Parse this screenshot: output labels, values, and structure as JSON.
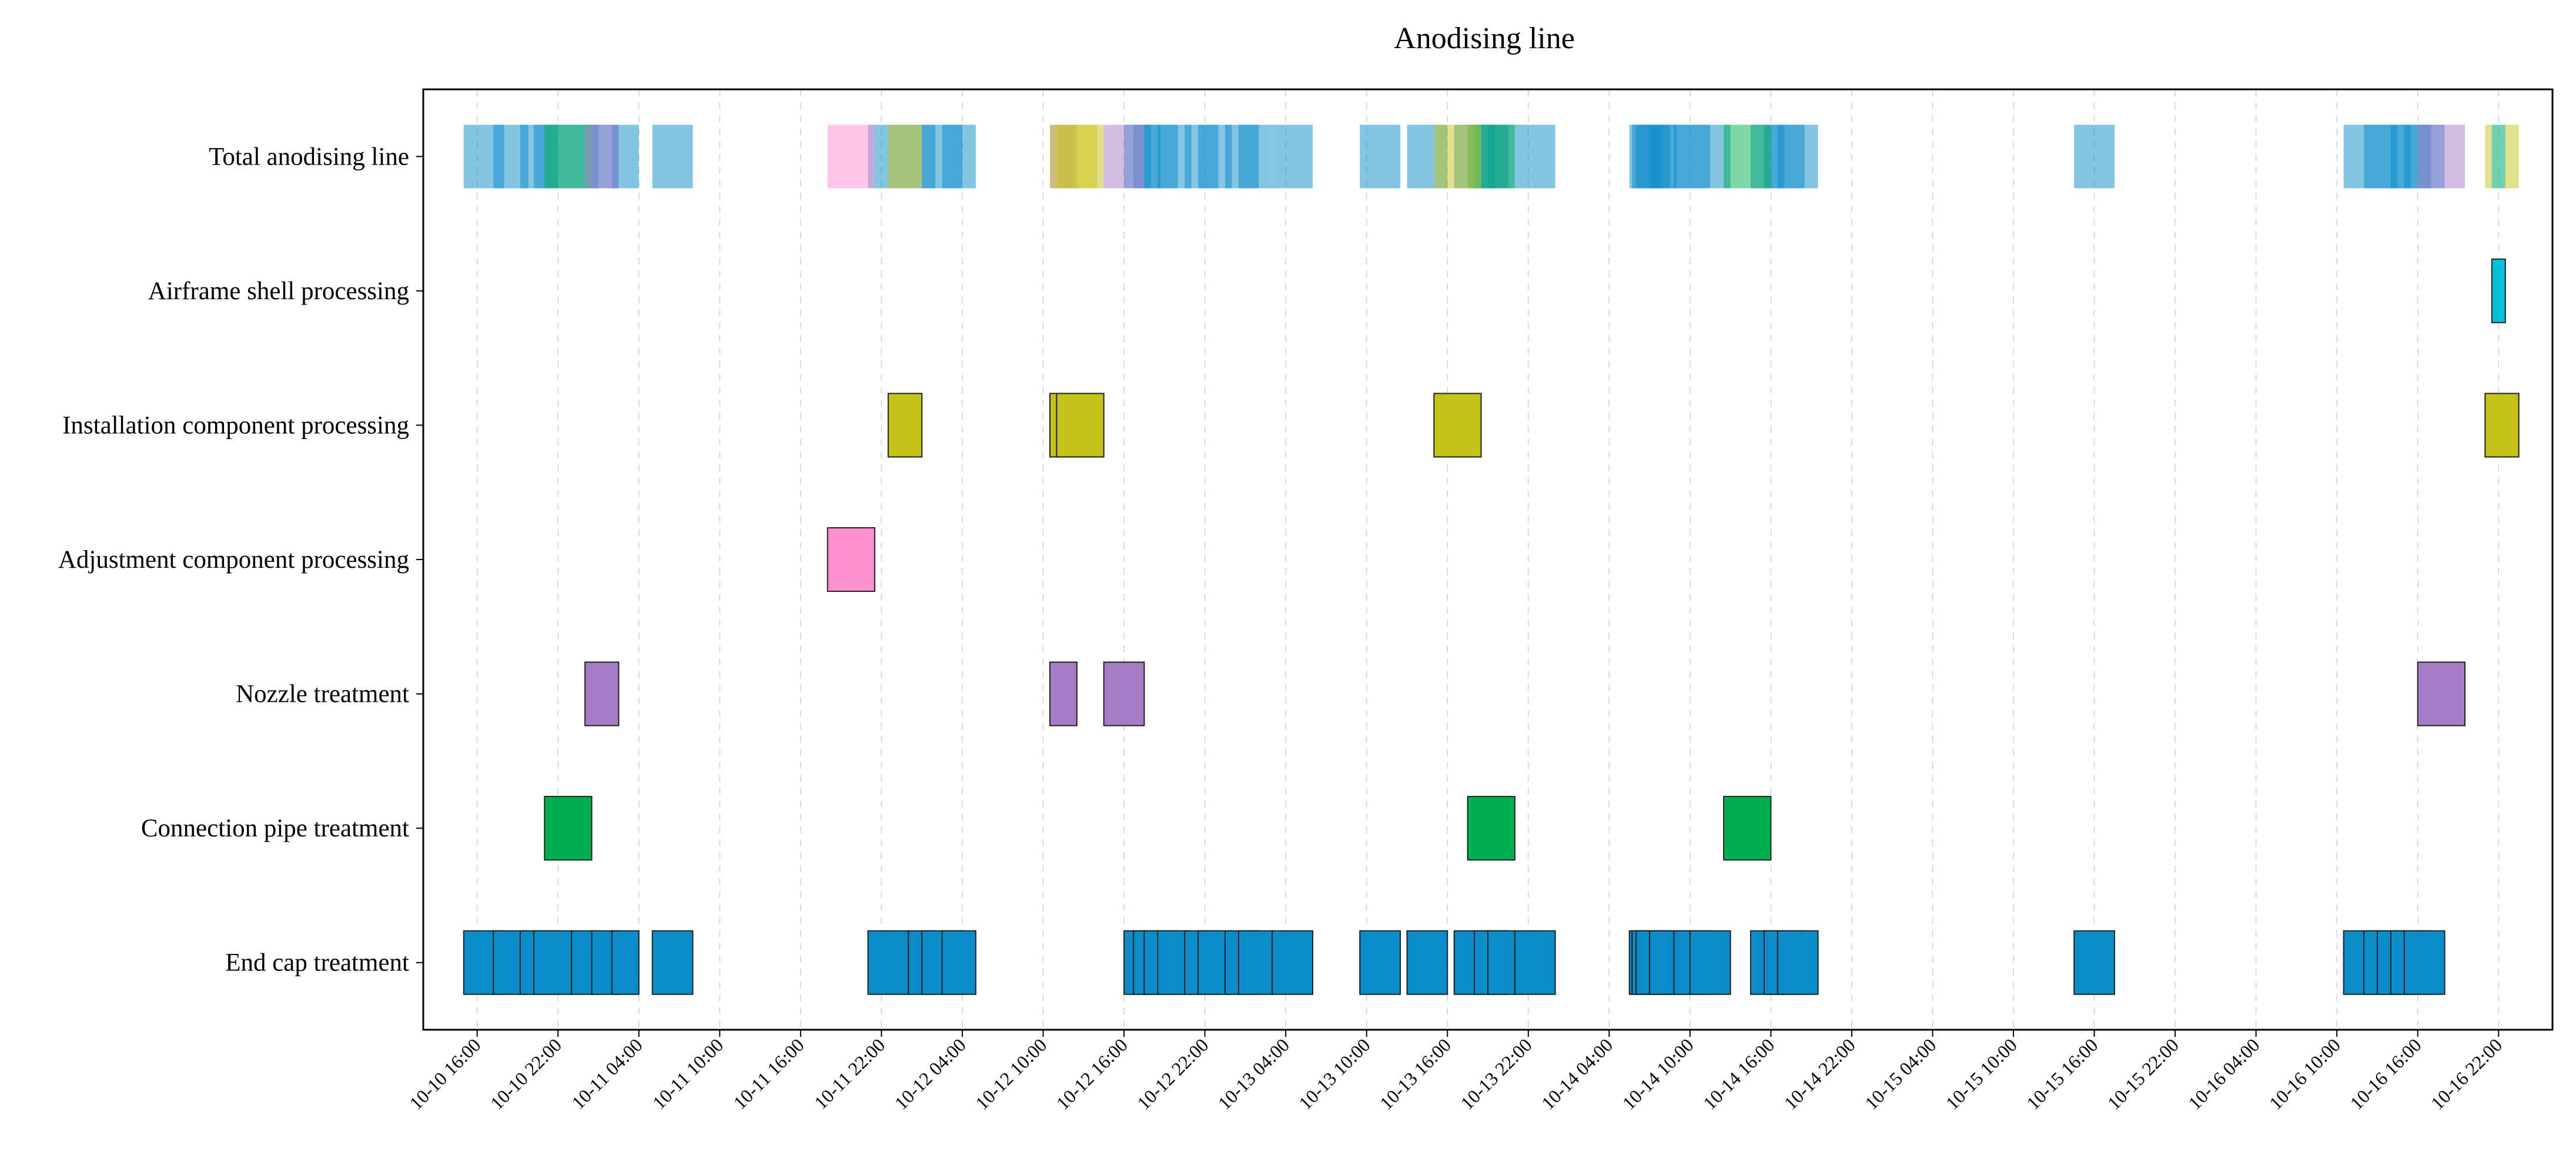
{
  "chart_data": {
    "type": "gantt",
    "title": "Anodising line",
    "time_unit": "hours since 10-10 16:00",
    "x_range_hours": [
      -4,
      154
    ],
    "x_ticks": [
      "10-10 16:00",
      "10-10 22:00",
      "10-11 04:00",
      "10-11 10:00",
      "10-11 16:00",
      "10-11 22:00",
      "10-12 04:00",
      "10-12 10:00",
      "10-12 16:00",
      "10-12 22:00",
      "10-13 04:00",
      "10-13 10:00",
      "10-13 16:00",
      "10-13 22:00",
      "10-14 04:00",
      "10-14 10:00",
      "10-14 16:00",
      "10-14 22:00",
      "10-15 04:00",
      "10-15 10:00",
      "10-15 16:00",
      "10-15 22:00",
      "10-16 04:00",
      "10-16 10:00",
      "10-16 16:00",
      "10-16 22:00"
    ],
    "rows": [
      "Total anodising line",
      "Airframe shell processing",
      "Installation component processing",
      "Adjustment component processing",
      "Nozzle treatment",
      "Connection pipe treatment",
      "End cap treatment"
    ],
    "colors": {
      "End cap treatment": "#0a8cc9",
      "Connection pipe treatment": "#00b050",
      "Nozzle treatment": "#a77cc7",
      "Adjustment component processing": "#ff8fcf",
      "Installation component processing": "#c5c21a",
      "Airframe shell processing": "#00c0d8"
    },
    "tasks": [
      {
        "row": "End cap treatment",
        "start": -1.0,
        "end": 2.0
      },
      {
        "row": "End cap treatment",
        "start": 1.2,
        "end": 3.8
      },
      {
        "row": "End cap treatment",
        "start": 3.2,
        "end": 6.0
      },
      {
        "row": "End cap treatment",
        "start": 4.2,
        "end": 7.0
      },
      {
        "row": "End cap treatment",
        "start": 7.0,
        "end": 9.0
      },
      {
        "row": "End cap treatment",
        "start": 8.5,
        "end": 10.5
      },
      {
        "row": "End cap treatment",
        "start": 10.0,
        "end": 12.0
      },
      {
        "row": "End cap treatment",
        "start": 13.0,
        "end": 16.0
      },
      {
        "row": "End cap treatment",
        "start": 29.0,
        "end": 32.0
      },
      {
        "row": "End cap treatment",
        "start": 32.0,
        "end": 34.0
      },
      {
        "row": "End cap treatment",
        "start": 33.0,
        "end": 36.0
      },
      {
        "row": "End cap treatment",
        "start": 34.5,
        "end": 37.0
      },
      {
        "row": "End cap treatment",
        "start": 48.0,
        "end": 50.0
      },
      {
        "row": "End cap treatment",
        "start": 48.7,
        "end": 50.7
      },
      {
        "row": "End cap treatment",
        "start": 49.5,
        "end": 52.0
      },
      {
        "row": "End cap treatment",
        "start": 50.5,
        "end": 53.0
      },
      {
        "row": "End cap treatment",
        "start": 52.5,
        "end": 55.0
      },
      {
        "row": "End cap treatment",
        "start": 53.5,
        "end": 56.0
      },
      {
        "row": "End cap treatment",
        "start": 55.5,
        "end": 58.0
      },
      {
        "row": "End cap treatment",
        "start": 56.5,
        "end": 59.0
      },
      {
        "row": "End cap treatment",
        "start": 59.0,
        "end": 62.0
      },
      {
        "row": "End cap treatment",
        "start": 65.5,
        "end": 68.5
      },
      {
        "row": "End cap treatment",
        "start": 69.0,
        "end": 72.0
      },
      {
        "row": "End cap treatment",
        "start": 72.5,
        "end": 75.5
      },
      {
        "row": "End cap treatment",
        "start": 74.0,
        "end": 76.5
      },
      {
        "row": "End cap treatment",
        "start": 75.0,
        "end": 77.0
      },
      {
        "row": "End cap treatment",
        "start": 77.0,
        "end": 80.0
      },
      {
        "row": "End cap treatment",
        "start": 85.5,
        "end": 88.0
      },
      {
        "row": "End cap treatment",
        "start": 85.7,
        "end": 88.5
      },
      {
        "row": "End cap treatment",
        "start": 86.0,
        "end": 89.0
      },
      {
        "row": "End cap treatment",
        "start": 87.0,
        "end": 90.0
      },
      {
        "row": "End cap treatment",
        "start": 88.8,
        "end": 91.5
      },
      {
        "row": "End cap treatment",
        "start": 90.0,
        "end": 93.0
      },
      {
        "row": "End cap treatment",
        "start": 94.5,
        "end": 97.0
      },
      {
        "row": "End cap treatment",
        "start": 95.5,
        "end": 98.5
      },
      {
        "row": "End cap treatment",
        "start": 96.5,
        "end": 99.5
      },
      {
        "row": "End cap treatment",
        "start": 118.5,
        "end": 121.5
      },
      {
        "row": "End cap treatment",
        "start": 138.5,
        "end": 141.0
      },
      {
        "row": "End cap treatment",
        "start": 140.0,
        "end": 142.5
      },
      {
        "row": "End cap treatment",
        "start": 141.0,
        "end": 143.5
      },
      {
        "row": "End cap treatment",
        "start": 142.0,
        "end": 145.0
      },
      {
        "row": "End cap treatment",
        "start": 143.0,
        "end": 146.0
      },
      {
        "row": "Connection pipe treatment",
        "start": 5.0,
        "end": 8.5
      },
      {
        "row": "Connection pipe treatment",
        "start": 73.5,
        "end": 77.0
      },
      {
        "row": "Connection pipe treatment",
        "start": 92.5,
        "end": 96.0
      },
      {
        "row": "Nozzle treatment",
        "start": 8.0,
        "end": 10.5
      },
      {
        "row": "Nozzle treatment",
        "start": 42.5,
        "end": 44.5
      },
      {
        "row": "Nozzle treatment",
        "start": 46.5,
        "end": 49.5
      },
      {
        "row": "Nozzle treatment",
        "start": 144.0,
        "end": 147.5
      },
      {
        "row": "Adjustment component processing",
        "start": 26.0,
        "end": 29.5
      },
      {
        "row": "Installation component processing",
        "start": 30.5,
        "end": 33.0
      },
      {
        "row": "Installation component processing",
        "start": 42.5,
        "end": 46.0
      },
      {
        "row": "Installation component processing",
        "start": 43.0,
        "end": 46.5
      },
      {
        "row": "Installation component processing",
        "start": 71.0,
        "end": 74.5
      },
      {
        "row": "Installation component processing",
        "start": 149.0,
        "end": 151.5
      },
      {
        "row": "Airframe shell processing",
        "start": 149.5,
        "end": 150.5
      }
    ]
  }
}
